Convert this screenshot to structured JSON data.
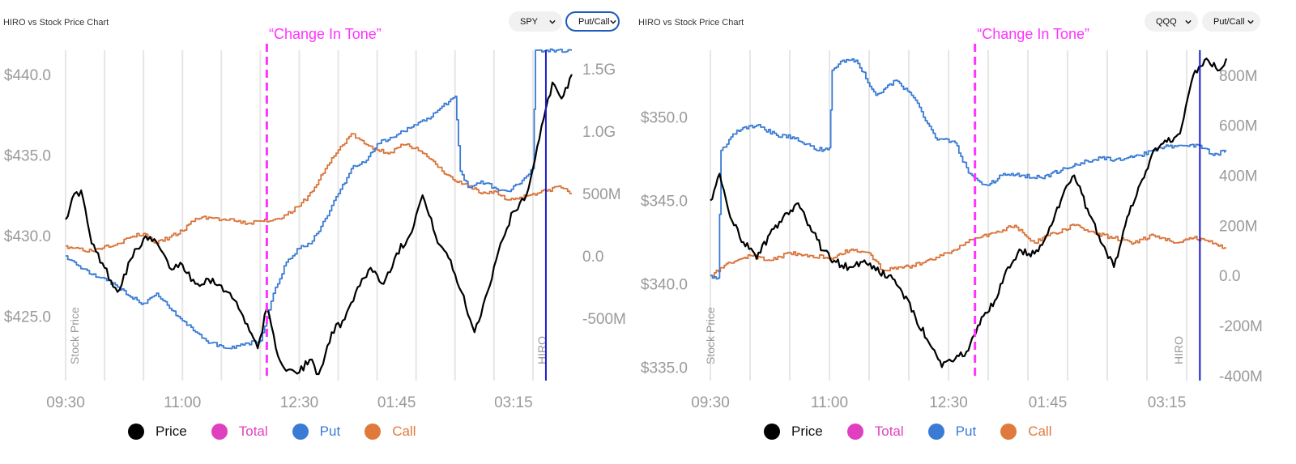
{
  "charts": [
    {
      "title": "HIRO vs Stock Price Chart",
      "symbol_select": "SPY",
      "mode_select": "Put/Call",
      "annotation": "“Change In Tone”"
    },
    {
      "title": "HIRO vs Stock Price Chart",
      "symbol_select": "QQQ",
      "mode_select": "Put/Call",
      "annotation": "“Change In Tone”"
    }
  ],
  "legend": [
    {
      "label": "Price",
      "color": "#000000",
      "text_color": "#111111"
    },
    {
      "label": "Total",
      "color": "#e040c0",
      "text_color": "#e040c0"
    },
    {
      "label": "Put",
      "color": "#3a7bd5",
      "text_color": "#3a7bd5"
    },
    {
      "label": "Call",
      "color": "#e07a3c",
      "text_color": "#e07a3c"
    }
  ],
  "colors": {
    "price": "#000000",
    "put": "#3a7bd5",
    "call": "#d9743a",
    "annotation": "#ff33ff",
    "hiro_marker": "#1a1acd",
    "grid": "#e6e6e6",
    "axis_text": "#9a9a9a"
  },
  "chart_data": [
    {
      "type": "line",
      "x_tick_labels": [
        "09:30",
        "11:00",
        "12:30",
        "01:45",
        "03:15"
      ],
      "x_ticks": [
        "09:30",
        "11:00",
        "12:30",
        "13:45",
        "15:15"
      ],
      "xlim": [
        "09:30",
        "16:00"
      ],
      "y_left": {
        "label": "Stock Price",
        "ticks": [
          "$440.0",
          "$435.0",
          "$430.0",
          "$425.0"
        ],
        "tick_values": [
          440,
          435,
          430,
          425
        ],
        "lim": [
          421,
          441.5
        ]
      },
      "y_right": {
        "label": "HIRO",
        "ticks": [
          "1.5G",
          "1.0G",
          "500M",
          "0.0",
          "-500M"
        ],
        "tick_values": [
          1500,
          1000,
          500,
          0,
          -500
        ],
        "unit": "M",
        "lim": [
          -1000,
          1650
        ]
      },
      "change_in_tone_time": "12:05",
      "hiro_time": "15:40",
      "series": [
        {
          "name": "Price",
          "axis": "left",
          "points": [
            [
              "09:30",
              431.0
            ],
            [
              "09:35",
              432.3
            ],
            [
              "09:42",
              432.8
            ],
            [
              "09:50",
              429.5
            ],
            [
              "10:00",
              428.0
            ],
            [
              "10:10",
              426.5
            ],
            [
              "10:20",
              428.5
            ],
            [
              "10:30",
              429.8
            ],
            [
              "10:40",
              429.6
            ],
            [
              "10:50",
              428.0
            ],
            [
              "11:00",
              428.2
            ],
            [
              "11:10",
              427.0
            ],
            [
              "11:20",
              427.3
            ],
            [
              "11:30",
              426.9
            ],
            [
              "11:40",
              426.0
            ],
            [
              "11:50",
              424.5
            ],
            [
              "11:58",
              423.0
            ],
            [
              "12:05",
              425.5
            ],
            [
              "12:12",
              423.0
            ],
            [
              "12:20",
              421.6
            ],
            [
              "12:30",
              421.5
            ],
            [
              "12:38",
              422.3
            ],
            [
              "12:45",
              421.4
            ],
            [
              "12:55",
              424.0
            ],
            [
              "13:05",
              424.8
            ],
            [
              "13:15",
              426.8
            ],
            [
              "13:25",
              428.0
            ],
            [
              "13:35",
              427.0
            ],
            [
              "13:45",
              428.9
            ],
            [
              "13:55",
              430.0
            ],
            [
              "14:05",
              432.5
            ],
            [
              "14:15",
              430.0
            ],
            [
              "14:25",
              428.6
            ],
            [
              "14:35",
              426.5
            ],
            [
              "14:45",
              424.0
            ],
            [
              "14:55",
              426.5
            ],
            [
              "15:05",
              429.5
            ],
            [
              "15:15",
              431.5
            ],
            [
              "15:25",
              432.5
            ],
            [
              "15:35",
              436.0
            ],
            [
              "15:45",
              439.5
            ],
            [
              "15:52",
              438.5
            ],
            [
              "16:00",
              440.0
            ]
          ]
        },
        {
          "name": "Put",
          "axis": "right",
          "points": [
            [
              "09:30",
              0
            ],
            [
              "09:40",
              -80
            ],
            [
              "09:50",
              -150
            ],
            [
              "10:00",
              -180
            ],
            [
              "10:10",
              -250
            ],
            [
              "10:20",
              -330
            ],
            [
              "10:30",
              -380
            ],
            [
              "10:40",
              -300
            ],
            [
              "10:50",
              -420
            ],
            [
              "11:00",
              -520
            ],
            [
              "11:10",
              -610
            ],
            [
              "11:20",
              -700
            ],
            [
              "11:30",
              -720
            ],
            [
              "11:40",
              -740
            ],
            [
              "11:50",
              -700
            ],
            [
              "12:00",
              -680
            ],
            [
              "12:05",
              -500
            ],
            [
              "12:10",
              -300
            ],
            [
              "12:20",
              -50
            ],
            [
              "12:30",
              60
            ],
            [
              "12:40",
              120
            ],
            [
              "12:50",
              300
            ],
            [
              "13:00",
              500
            ],
            [
              "13:10",
              700
            ],
            [
              "13:20",
              750
            ],
            [
              "13:30",
              900
            ],
            [
              "13:40",
              950
            ],
            [
              "13:50",
              1000
            ],
            [
              "14:00",
              1050
            ],
            [
              "14:10",
              1100
            ],
            [
              "14:20",
              1200
            ],
            [
              "14:30",
              1280
            ],
            [
              "14:34",
              680
            ],
            [
              "14:40",
              550
            ],
            [
              "14:50",
              600
            ],
            [
              "15:00",
              550
            ],
            [
              "15:10",
              520
            ],
            [
              "15:20",
              580
            ],
            [
              "15:30",
              700
            ],
            [
              "15:32",
              1650
            ],
            [
              "15:45",
              1650
            ],
            [
              "16:00",
              1650
            ]
          ]
        },
        {
          "name": "Call",
          "axis": "right",
          "points": [
            [
              "09:30",
              80
            ],
            [
              "09:40",
              60
            ],
            [
              "09:50",
              40
            ],
            [
              "10:00",
              80
            ],
            [
              "10:10",
              100
            ],
            [
              "10:20",
              150
            ],
            [
              "10:30",
              180
            ],
            [
              "10:40",
              100
            ],
            [
              "10:50",
              150
            ],
            [
              "11:00",
              200
            ],
            [
              "11:10",
              300
            ],
            [
              "11:20",
              310
            ],
            [
              "11:30",
              290
            ],
            [
              "11:40",
              280
            ],
            [
              "11:50",
              260
            ],
            [
              "12:00",
              280
            ],
            [
              "12:10",
              290
            ],
            [
              "12:20",
              330
            ],
            [
              "12:30",
              400
            ],
            [
              "12:40",
              520
            ],
            [
              "12:50",
              700
            ],
            [
              "13:00",
              850
            ],
            [
              "13:10",
              980
            ],
            [
              "13:20",
              900
            ],
            [
              "13:30",
              850
            ],
            [
              "13:40",
              830
            ],
            [
              "13:50",
              890
            ],
            [
              "14:00",
              870
            ],
            [
              "14:10",
              780
            ],
            [
              "14:20",
              680
            ],
            [
              "14:30",
              600
            ],
            [
              "14:40",
              560
            ],
            [
              "14:50",
              500
            ],
            [
              "15:00",
              520
            ],
            [
              "15:10",
              450
            ],
            [
              "15:20",
              470
            ],
            [
              "15:30",
              500
            ],
            [
              "15:40",
              520
            ],
            [
              "15:50",
              560
            ],
            [
              "16:00",
              500
            ]
          ]
        }
      ]
    },
    {
      "type": "line",
      "x_tick_labels": [
        "09:30",
        "11:00",
        "12:30",
        "01:45",
        "03:15"
      ],
      "x_ticks": [
        "09:30",
        "11:00",
        "12:30",
        "13:45",
        "15:15"
      ],
      "xlim": [
        "09:30",
        "16:00"
      ],
      "y_left": {
        "label": "Stock Price",
        "ticks": [
          "$350.0",
          "$345.0",
          "$340.0",
          "$335.0"
        ],
        "tick_values": [
          350,
          345,
          340,
          335
        ],
        "lim": [
          334.2,
          354
        ]
      },
      "y_right": {
        "label": "HIRO",
        "ticks": [
          "800M",
          "600M",
          "400M",
          "200M",
          "0.0",
          "-200M",
          "-400M"
        ],
        "tick_values": [
          800,
          600,
          400,
          200,
          0,
          -200,
          -400
        ],
        "unit": "M",
        "lim": [
          -420,
          900
        ]
      },
      "change_in_tone_time": "12:50",
      "hiro_time": "15:40",
      "series": [
        {
          "name": "Price",
          "axis": "left",
          "points": [
            [
              "09:30",
              345.0
            ],
            [
              "09:37",
              346.6
            ],
            [
              "09:45",
              344.0
            ],
            [
              "09:55",
              342.5
            ],
            [
              "10:05",
              341.5
            ],
            [
              "10:15",
              343.0
            ],
            [
              "10:25",
              344.0
            ],
            [
              "10:35",
              344.8
            ],
            [
              "10:45",
              343.5
            ],
            [
              "10:55",
              342.0
            ],
            [
              "11:05",
              341.3
            ],
            [
              "11:15",
              341.0
            ],
            [
              "11:25",
              341.3
            ],
            [
              "11:35",
              340.8
            ],
            [
              "11:45",
              340.5
            ],
            [
              "11:55",
              339.5
            ],
            [
              "12:05",
              338.0
            ],
            [
              "12:15",
              336.5
            ],
            [
              "12:25",
              335.0
            ],
            [
              "12:35",
              335.5
            ],
            [
              "12:45",
              336.0
            ],
            [
              "12:55",
              338.0
            ],
            [
              "13:05",
              339.0
            ],
            [
              "13:15",
              341.0
            ],
            [
              "13:25",
              342.0
            ],
            [
              "13:35",
              341.8
            ],
            [
              "13:45",
              343.0
            ],
            [
              "13:55",
              345.0
            ],
            [
              "14:05",
              346.5
            ],
            [
              "14:15",
              344.5
            ],
            [
              "14:25",
              342.5
            ],
            [
              "14:35",
              341.0
            ],
            [
              "14:45",
              344.0
            ],
            [
              "14:55",
              346.0
            ],
            [
              "15:05",
              348.0
            ],
            [
              "15:15",
              348.5
            ],
            [
              "15:25",
              349.0
            ],
            [
              "15:35",
              352.5
            ],
            [
              "15:45",
              353.5
            ],
            [
              "15:55",
              352.8
            ],
            [
              "16:00",
              353.5
            ]
          ]
        },
        {
          "name": "Put",
          "axis": "right",
          "points": [
            [
              "09:30",
              0
            ],
            [
              "09:36",
              -10
            ],
            [
              "09:38",
              500
            ],
            [
              "09:50",
              580
            ],
            [
              "10:05",
              600
            ],
            [
              "10:20",
              560
            ],
            [
              "10:35",
              550
            ],
            [
              "10:50",
              500
            ],
            [
              "11:00",
              510
            ],
            [
              "11:02",
              820
            ],
            [
              "11:10",
              860
            ],
            [
              "11:20",
              860
            ],
            [
              "11:35",
              720
            ],
            [
              "11:50",
              780
            ],
            [
              "12:05",
              700
            ],
            [
              "12:20",
              550
            ],
            [
              "12:35",
              530
            ],
            [
              "12:45",
              410
            ],
            [
              "12:52",
              380
            ],
            [
              "13:00",
              360
            ],
            [
              "13:10",
              400
            ],
            [
              "13:25",
              400
            ],
            [
              "13:40",
              390
            ],
            [
              "13:55",
              420
            ],
            [
              "14:10",
              450
            ],
            [
              "14:25",
              470
            ],
            [
              "14:40",
              460
            ],
            [
              "14:55",
              480
            ],
            [
              "15:10",
              510
            ],
            [
              "15:25",
              520
            ],
            [
              "15:40",
              520
            ],
            [
              "15:50",
              480
            ],
            [
              "16:00",
              500
            ]
          ]
        },
        {
          "name": "Call",
          "axis": "right",
          "points": [
            [
              "09:30",
              0
            ],
            [
              "09:45",
              50
            ],
            [
              "10:00",
              80
            ],
            [
              "10:15",
              60
            ],
            [
              "10:30",
              90
            ],
            [
              "10:45",
              80
            ],
            [
              "11:00",
              70
            ],
            [
              "11:15",
              100
            ],
            [
              "11:30",
              90
            ],
            [
              "11:40",
              20
            ],
            [
              "11:55",
              30
            ],
            [
              "12:10",
              50
            ],
            [
              "12:25",
              80
            ],
            [
              "12:40",
              120
            ],
            [
              "12:50",
              150
            ],
            [
              "13:05",
              170
            ],
            [
              "13:20",
              200
            ],
            [
              "13:35",
              130
            ],
            [
              "13:50",
              170
            ],
            [
              "14:05",
              200
            ],
            [
              "14:20",
              170
            ],
            [
              "14:35",
              150
            ],
            [
              "14:50",
              130
            ],
            [
              "15:05",
              160
            ],
            [
              "15:20",
              130
            ],
            [
              "15:35",
              150
            ],
            [
              "15:45",
              140
            ],
            [
              "16:00",
              110
            ]
          ]
        }
      ]
    }
  ]
}
